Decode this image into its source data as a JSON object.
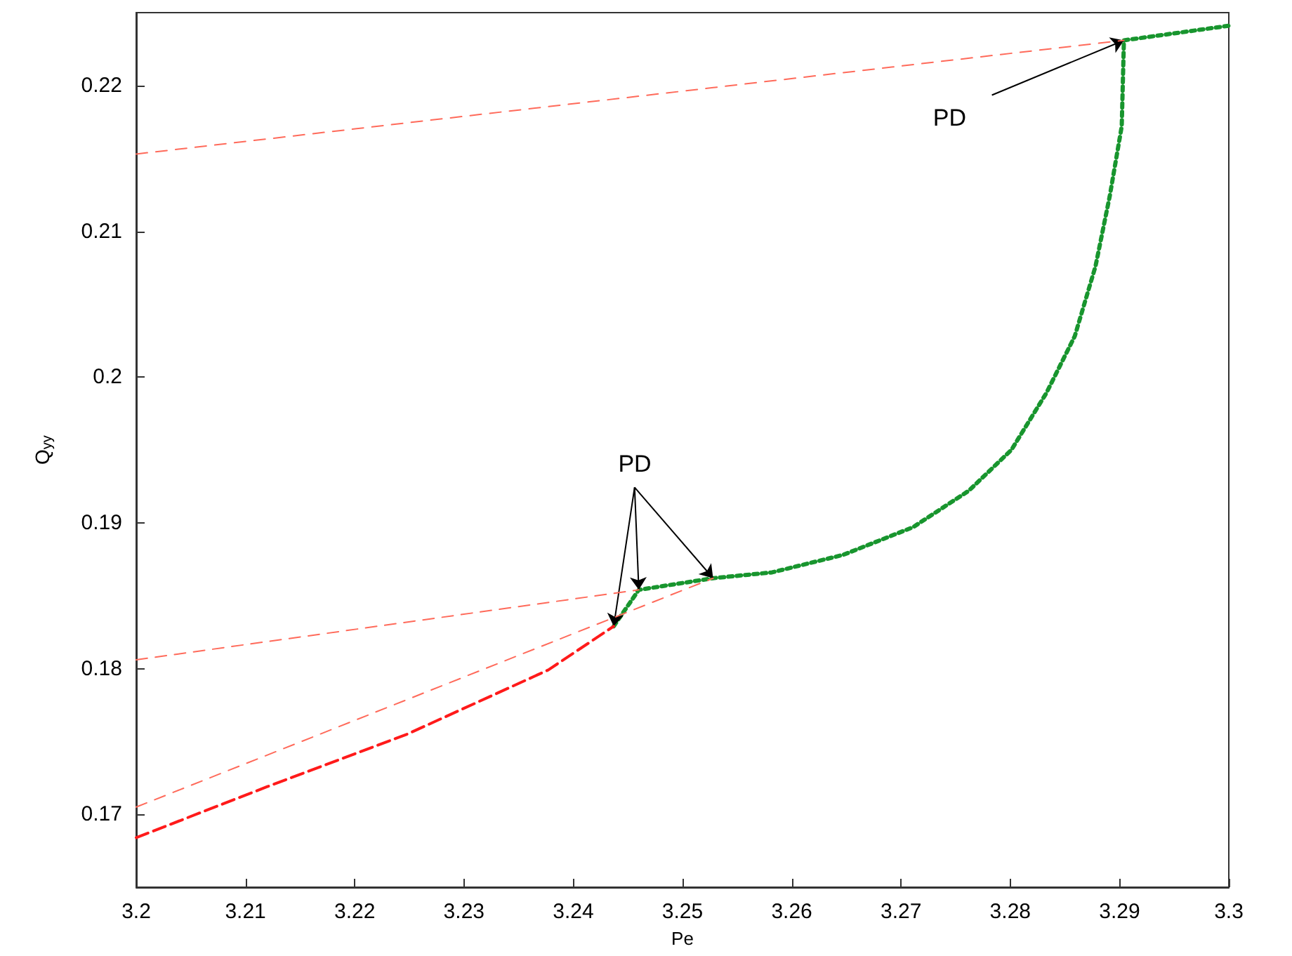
{
  "chart_data": {
    "type": "line",
    "xlabel": "Pe",
    "ylabel": "Q$_{yy}$",
    "xlim": [
      3.2,
      3.3
    ],
    "ylim": [
      0.165,
      0.225
    ],
    "xticks": [
      3.2,
      3.21,
      3.22,
      3.23,
      3.24,
      3.25,
      3.26,
      3.27,
      3.28,
      3.29,
      3.3
    ],
    "yticks": [
      0.17,
      0.18,
      0.19,
      0.2,
      0.21,
      0.22
    ],
    "grid": false,
    "marker": "none",
    "series": [
      {
        "color": "#ff6a5a",
        "line_style": "dashed",
        "x": [
          3.2,
          3.2904
        ],
        "values": [
          0.2153,
          0.2231
        ]
      },
      {
        "color": "#ff6a5a",
        "line_style": "dashed",
        "x": [
          3.2,
          3.246
        ],
        "values": [
          0.1806,
          0.1854
        ]
      },
      {
        "color": "#ff6a5a",
        "line_style": "dashed",
        "x": [
          3.2,
          3.2528
        ],
        "values": [
          0.1705,
          0.1862
        ]
      },
      {
        "color": "#ff1a1a",
        "line_style": "dashed",
        "x": [
          3.2,
          3.212,
          3.2248,
          3.2377,
          3.2437
        ],
        "values": [
          0.1684,
          0.1719,
          0.1755,
          0.1799,
          0.1829
        ]
      },
      {
        "color": "#18952e",
        "line_style": "dotted",
        "x": [
          3.2437,
          3.246,
          3.2528,
          3.2582,
          3.2647,
          3.2711,
          3.2762,
          3.2801,
          3.2833,
          3.2859,
          3.2878,
          3.2891,
          3.2902,
          3.2904,
          3.3
        ],
        "values": [
          0.1829,
          0.1854,
          0.1862,
          0.1866,
          0.1878,
          0.1897,
          0.1922,
          0.195,
          0.1989,
          0.2028,
          0.2076,
          0.2124,
          0.2172,
          0.2231,
          0.2241
        ]
      }
    ],
    "annotations": [
      {
        "text": "PD",
        "x": 3.2904,
        "y": 0.2231
      },
      {
        "text": "PD",
        "x": 3.246,
        "y": 0.1854
      }
    ]
  }
}
